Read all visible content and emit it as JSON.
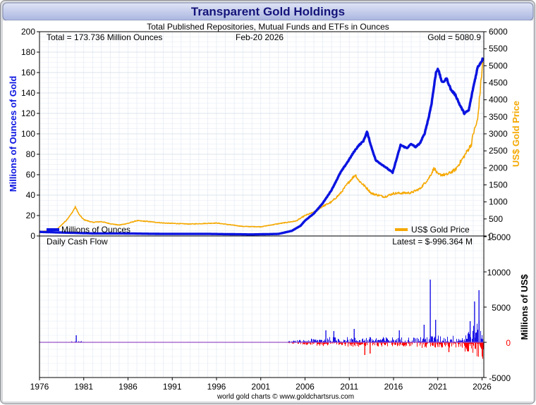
{
  "header": {
    "title": "Transparent Gold Holdings",
    "subtitle": "Total Published Repositories, Mutual Funds and ETFs in Ounces"
  },
  "footer": {
    "credit": "world gold charts © www.goldchartsrus.com"
  },
  "colors": {
    "holdings": "#0a14e0",
    "gold": "#f5a800",
    "inflow": "#1a14e6",
    "outflow": "#ff0000",
    "title_bg_top": "#dfe4f6",
    "title_bg_bottom": "#aab6e0",
    "grid": "#e3e9f3"
  },
  "chart_data": [
    {
      "type": "line",
      "panel": "holdings",
      "annotations": {
        "total": "Total = 173.736 Million Ounces",
        "date": "Feb-20  2026",
        "gold": "Gold = 5080.9"
      },
      "ylabel_left": "Millions of Ounces of Gold",
      "ylabel_right": "US$ Gold Price",
      "ylim_left": [
        0,
        200
      ],
      "ylim_right": [
        0,
        6000
      ],
      "yticks_left": [
        "0",
        "20",
        "40",
        "60",
        "80",
        "100",
        "120",
        "140",
        "160",
        "180",
        "200"
      ],
      "yticks_right": [
        "0",
        "500",
        "1000",
        "1500",
        "2000",
        "2500",
        "3000",
        "3500",
        "4000",
        "4500",
        "5000",
        "5500",
        "6000"
      ],
      "xlim": [
        1976,
        2026.2
      ],
      "xticks": [
        "1976",
        "1981",
        "1986",
        "1991",
        "1996",
        "2001",
        "2006",
        "2011",
        "2016",
        "2021",
        "2026"
      ],
      "grid": true,
      "legend": [
        {
          "name": "Millions of Ounces",
          "placement": "bottom-left"
        },
        {
          "name": "US$ Gold Price",
          "placement": "bottom-right"
        }
      ],
      "series": [
        {
          "name": "Millions of Ounces",
          "axis": "left",
          "x": [
            1976,
            1978,
            1980,
            1982,
            1985,
            1990,
            1995,
            2000,
            2003,
            2004.5,
            2005.5,
            2006,
            2007,
            2008,
            2009,
            2010,
            2011,
            2011.5,
            2012,
            2012.6,
            2013,
            2013.5,
            2014,
            2015,
            2015.9,
            2016.3,
            2016.8,
            2017.5,
            2018,
            2018.5,
            2019,
            2019.5,
            2020,
            2020.3,
            2020.8,
            2021,
            2021.5,
            2022,
            2022.5,
            2023,
            2023.5,
            2024,
            2024.5,
            2025,
            2025.5,
            2026,
            2026.1
          ],
          "values": [
            4,
            3.5,
            3,
            2.5,
            2.5,
            2,
            2,
            1.5,
            2,
            5,
            10,
            15,
            22,
            32,
            45,
            62,
            75,
            82,
            88,
            93,
            102,
            87,
            74,
            68,
            62,
            74,
            89,
            86,
            90,
            87,
            91,
            100,
            117,
            130,
            160,
            164,
            150,
            154,
            143,
            138,
            128,
            120,
            123,
            145,
            165,
            172,
            173.7
          ]
        },
        {
          "name": "US$ Gold Price",
          "axis": "right",
          "x": [
            1976,
            1977,
            1978,
            1979,
            1979.6,
            1980.05,
            1980.5,
            1981,
            1982,
            1983,
            1984,
            1985,
            1986,
            1987,
            1988,
            1990,
            1993,
            1996,
            1999,
            2001,
            2003,
            2005,
            2006,
            2007,
            2008,
            2009,
            2010,
            2011,
            2011.7,
            2012,
            2013,
            2013.5,
            2015,
            2016,
            2017,
            2018,
            2019,
            2020,
            2020.6,
            2021,
            2022,
            2023,
            2024,
            2024.8,
            2025,
            2025.5,
            2026,
            2026.1
          ],
          "values": [
            130,
            150,
            200,
            450,
            650,
            850,
            620,
            480,
            400,
            420,
            360,
            320,
            370,
            450,
            430,
            380,
            350,
            380,
            280,
            270,
            360,
            440,
            600,
            700,
            870,
            1000,
            1250,
            1600,
            1800,
            1650,
            1400,
            1250,
            1150,
            1250,
            1260,
            1270,
            1390,
            1700,
            2000,
            1800,
            1800,
            1950,
            2350,
            2700,
            3000,
            3400,
            4900,
            5080.9
          ]
        }
      ]
    },
    {
      "type": "bar",
      "panel": "daily-cash-flow",
      "title": "Daily Cash Flow",
      "annotation": "Latest = $-996.364 M",
      "ylabel": "Millions of US$",
      "ylim": [
        -5000,
        15000
      ],
      "yticks": [
        "-5000",
        "0",
        "5000",
        "10000",
        "15000"
      ],
      "x": [
        1980.1,
        2008.3,
        2009.2,
        2011.5,
        2012.7,
        2013.3,
        2016.6,
        2019.4,
        2020.1,
        2020.7,
        2022.2,
        2024.6,
        2025.1,
        2025.6,
        2026.05
      ],
      "values": [
        1000,
        1700,
        1600,
        1900,
        -1800,
        -1600,
        1700,
        2500,
        8900,
        3200,
        -1400,
        3000,
        5800,
        7400,
        -996
      ]
    }
  ]
}
